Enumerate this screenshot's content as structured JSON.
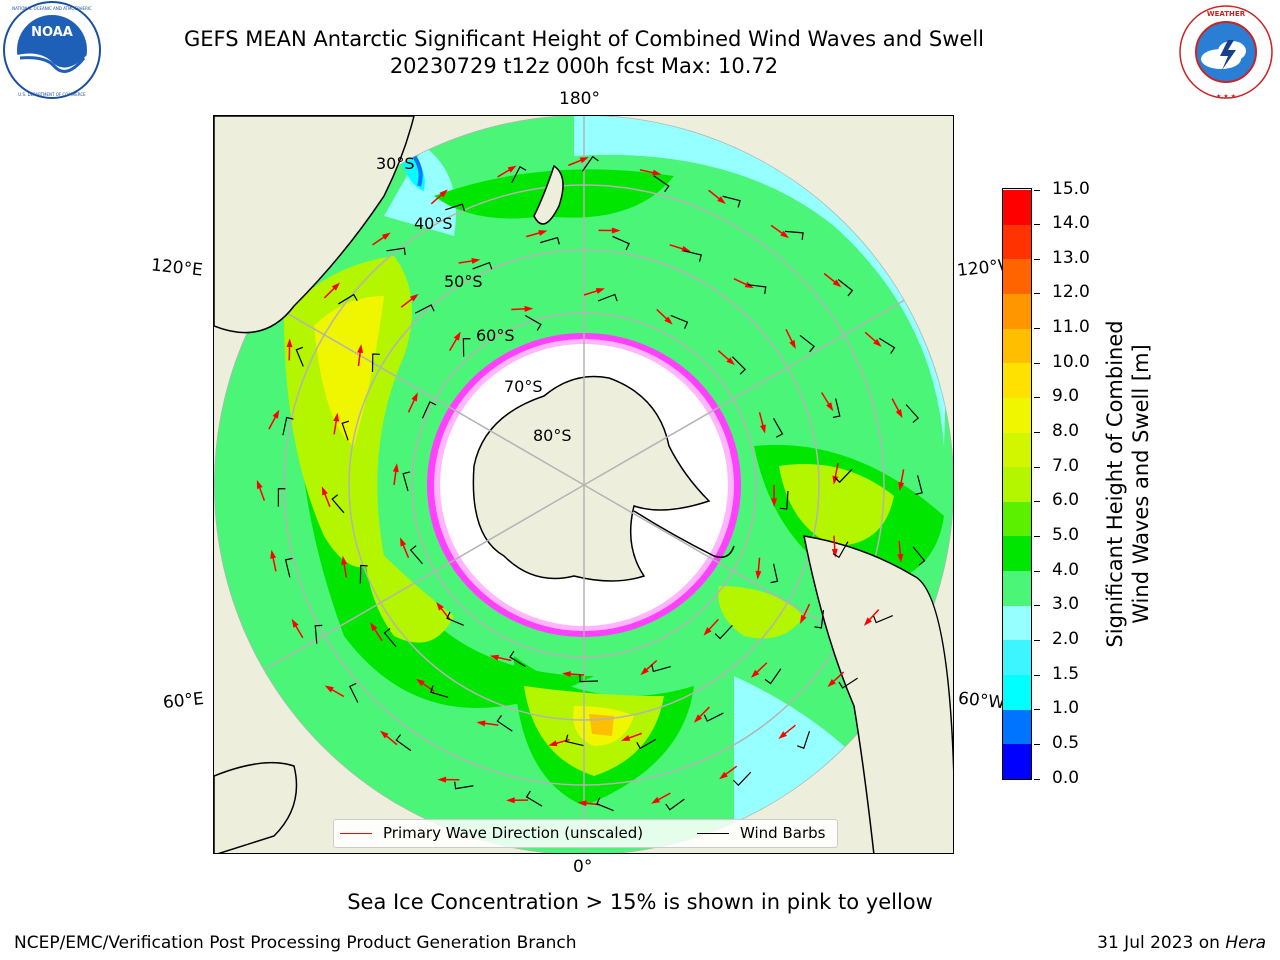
{
  "header": {
    "title_line1": "GEFS MEAN Antarctic Significant Height of Combined Wind Waves and Swell",
    "title_line2": "20230729 t12z 000h fcst   Max: 10.72"
  },
  "logos": {
    "left": {
      "name": "noaa-logo",
      "text": "NOAA",
      "ring_text": "NATIONAL OCEANIC AND ATMOSPHERIC ADMINISTRATION · U.S. DEPARTMENT OF COMMERCE"
    },
    "right": {
      "name": "nws-logo",
      "ring_text": "NATIONAL WEATHER SERVICE"
    }
  },
  "map": {
    "projection": "south polar stereographic",
    "lat_labels": [
      "30°S",
      "40°S",
      "50°S",
      "60°S",
      "70°S",
      "80°S"
    ],
    "lon_labels": {
      "top": "180°",
      "bottom": "0°",
      "upper_left": "120°E",
      "upper_right": "120°W",
      "lower_left": "60°E",
      "lower_right": "60°W"
    },
    "colors": {
      "land": "#eeeedc",
      "ocean_base": "#00e600",
      "ice": "#ffffff",
      "sea_ice_edge": "#ff40ff",
      "wave_arrow": "#ff0000",
      "wind_barb": "#000000",
      "grid": "#b3b3b3"
    }
  },
  "legend": {
    "wave_label": "Primary Wave Direction (unscaled)",
    "wave_color": "#ff0000",
    "barb_label": "Wind Barbs",
    "barb_color": "#000000"
  },
  "colorbar": {
    "title_line1": "Significant Height of Combined",
    "title_line2": "Wind Waves and Swell [m]",
    "ticks": [
      "0.0",
      "0.5",
      "1.0",
      "1.5",
      "2.0",
      "3.0",
      "4.0",
      "5.0",
      "6.0",
      "7.0",
      "8.0",
      "9.0",
      "10.0",
      "11.0",
      "12.0",
      "13.0",
      "14.0",
      "15.0"
    ],
    "colors": [
      "#0000ff",
      "#0073ff",
      "#00ffff",
      "#3cf5ff",
      "#96ffff",
      "#4bf578",
      "#00e600",
      "#5af000",
      "#b4f500",
      "#d2f500",
      "#f0f500",
      "#ffe100",
      "#ffbe00",
      "#ff9600",
      "#ff6400",
      "#ff3200",
      "#ff0000"
    ]
  },
  "caption": "Sea Ice Concentration > 15% is shown in pink to yellow",
  "footer": {
    "left": "NCEP/EMC/Verification Post Processing Product Generation Branch",
    "right_date": "31 Jul 2023 on",
    "right_host": "Hera"
  }
}
